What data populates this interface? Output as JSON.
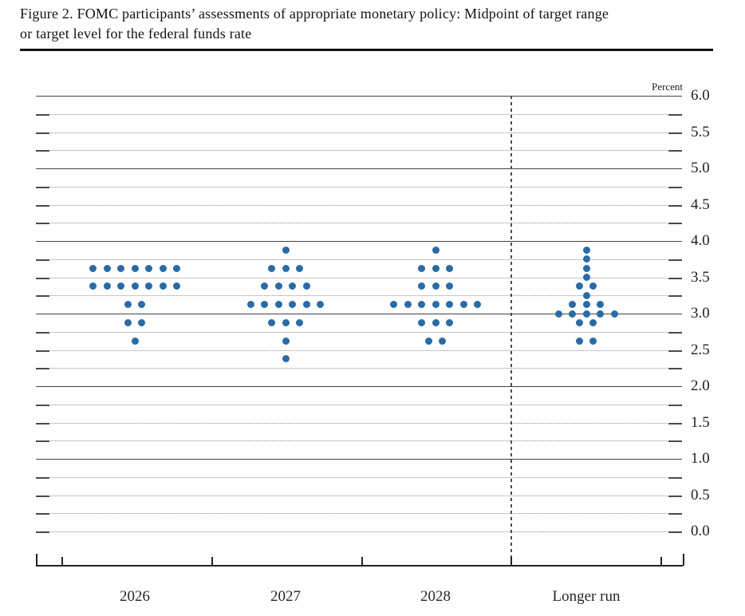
{
  "figure": {
    "title_line1": "Figure 2. FOMC participants’ assessments of appropriate monetary policy: Midpoint of target range",
    "title_line2": "or target level for the federal funds rate"
  },
  "chart_data": {
    "type": "scatter",
    "subtype": "fomc-dot-plot",
    "title": "Figure 2. FOMC participants’ assessments of appropriate monetary policy: Midpoint of target range or target level for the federal funds rate",
    "unit_label": "Percent",
    "categories": [
      "2026",
      "2027",
      "2028",
      "Longer run"
    ],
    "y_axis": {
      "min": 0.0,
      "max": 6.0,
      "grid_step": 0.25,
      "label_step": 0.5,
      "tick_labels": [
        "6.0",
        "5.5",
        "5.0",
        "4.5",
        "4.0",
        "3.5",
        "3.0",
        "2.5",
        "2.0",
        "1.5",
        "1.0",
        "0.5",
        "0.0"
      ],
      "solid_line_values": [
        1.0,
        2.0,
        3.0,
        4.0,
        5.0,
        6.0
      ]
    },
    "grid": true,
    "legend_position": "none",
    "dot_color": "#2A6BA5",
    "separator_after_category": "2028",
    "series": [
      {
        "category": "2026",
        "dots": [
          {
            "rate": 3.625,
            "count": 7
          },
          {
            "rate": 3.375,
            "count": 7
          },
          {
            "rate": 3.125,
            "count": 2
          },
          {
            "rate": 2.875,
            "count": 2
          },
          {
            "rate": 2.625,
            "count": 1
          }
        ]
      },
      {
        "category": "2027",
        "dots": [
          {
            "rate": 3.875,
            "count": 1
          },
          {
            "rate": 3.625,
            "count": 3
          },
          {
            "rate": 3.375,
            "count": 4
          },
          {
            "rate": 3.125,
            "count": 6
          },
          {
            "rate": 2.875,
            "count": 3
          },
          {
            "rate": 2.625,
            "count": 1
          },
          {
            "rate": 2.375,
            "count": 1
          }
        ]
      },
      {
        "category": "2028",
        "dots": [
          {
            "rate": 3.875,
            "count": 1
          },
          {
            "rate": 3.625,
            "count": 3
          },
          {
            "rate": 3.375,
            "count": 3
          },
          {
            "rate": 3.125,
            "count": 7
          },
          {
            "rate": 2.875,
            "count": 3
          },
          {
            "rate": 2.625,
            "count": 2
          }
        ]
      },
      {
        "category": "Longer run",
        "dots": [
          {
            "rate": 3.875,
            "count": 1
          },
          {
            "rate": 3.75,
            "count": 1
          },
          {
            "rate": 3.625,
            "count": 1
          },
          {
            "rate": 3.5,
            "count": 1
          },
          {
            "rate": 3.375,
            "count": 2
          },
          {
            "rate": 3.25,
            "count": 1
          },
          {
            "rate": 3.125,
            "count": 3
          },
          {
            "rate": 3.0,
            "count": 5
          },
          {
            "rate": 2.875,
            "count": 2
          },
          {
            "rate": 2.625,
            "count": 2
          }
        ]
      }
    ]
  }
}
